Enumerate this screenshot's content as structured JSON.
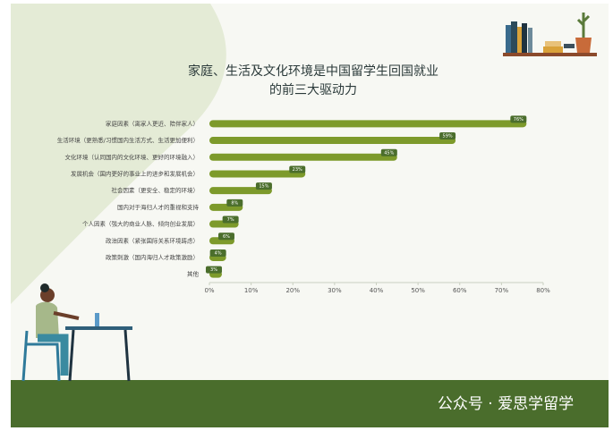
{
  "chart_data": {
    "type": "bar",
    "orientation": "horizontal",
    "title": [
      "家庭、生活及文化环境是中国留学生回国就业",
      "的前三大驱动力"
    ],
    "categories": [
      "家庭因素（离家人更近、陪伴家人）",
      "生活环境（更熟悉/习惯国内生活方式、生活更加便利）",
      "文化环境（认同国内的文化环境、更好的环境融入）",
      "发展机会（国内更好的事业上的进步和发展机会）",
      "社会因素（更安全、稳定的环境）",
      "国内对于海归人才的重视和支持",
      "个人因素（强大的商业人脉、倾向创业发展）",
      "政治因素（紧张国际关系环境踌虑）",
      "政策刺激（国内海归人才政策激励）",
      "其他"
    ],
    "values": [
      76,
      59,
      45,
      23,
      15,
      8,
      7,
      6,
      4,
      3
    ],
    "value_labels": [
      "76%",
      "59%",
      "45%",
      "23%",
      "15%",
      "8%",
      "7%",
      "6%",
      "4%",
      "3%"
    ],
    "color": "#7d9a2b",
    "label_color": "#4b6e2c",
    "xlim": [
      0,
      80
    ],
    "xticks": [
      {
        "value": 0,
        "label": "0%"
      },
      {
        "value": 10,
        "label": "10%"
      },
      {
        "value": 20,
        "label": "20%"
      },
      {
        "value": 30,
        "label": "30%"
      },
      {
        "value": 40,
        "label": "40%"
      },
      {
        "value": 50,
        "label": "50%"
      },
      {
        "value": 60,
        "label": "60%"
      },
      {
        "value": 70,
        "label": "70%"
      },
      {
        "value": 80,
        "label": "80%"
      }
    ]
  },
  "watermark": "公众号 · 爱思学留学"
}
